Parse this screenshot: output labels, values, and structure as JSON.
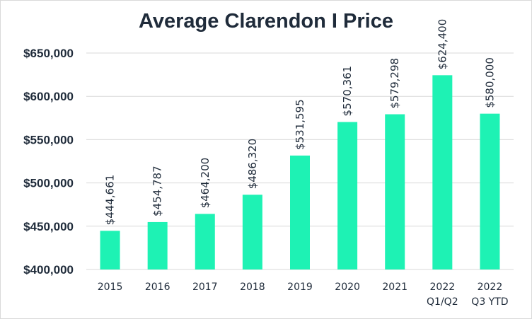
{
  "chart_data": {
    "type": "bar",
    "title": "Average Clarendon I Price",
    "xlabel": "",
    "ylabel": "",
    "categories": [
      [
        "2015"
      ],
      [
        "2016"
      ],
      [
        "2017"
      ],
      [
        "2018"
      ],
      [
        "2019"
      ],
      [
        "2020"
      ],
      [
        "2021"
      ],
      [
        "2022",
        "Q1/Q2"
      ],
      [
        "2022",
        "Q3 YTD"
      ]
    ],
    "values": [
      444661,
      454787,
      464200,
      486320,
      531595,
      570361,
      579298,
      624400,
      580000
    ],
    "data_labels": [
      "$444,661",
      "$454,787",
      "$464,200",
      "$486,320",
      "$531,595",
      "$570,361",
      "$579,298",
      "$624,400",
      "$580,000"
    ],
    "ylim": [
      400000,
      650000
    ],
    "yticks": [
      400000,
      450000,
      500000,
      550000,
      600000,
      650000
    ],
    "ytick_labels": [
      "$400,000",
      "$450,000",
      "$500,000",
      "$550,000",
      "$600,000",
      "$650,000"
    ],
    "grid": true,
    "legend": "none",
    "colors": {
      "bar": "#1ef2b4",
      "grid": "#d9d9d9",
      "text": "#1f2b3a"
    }
  }
}
